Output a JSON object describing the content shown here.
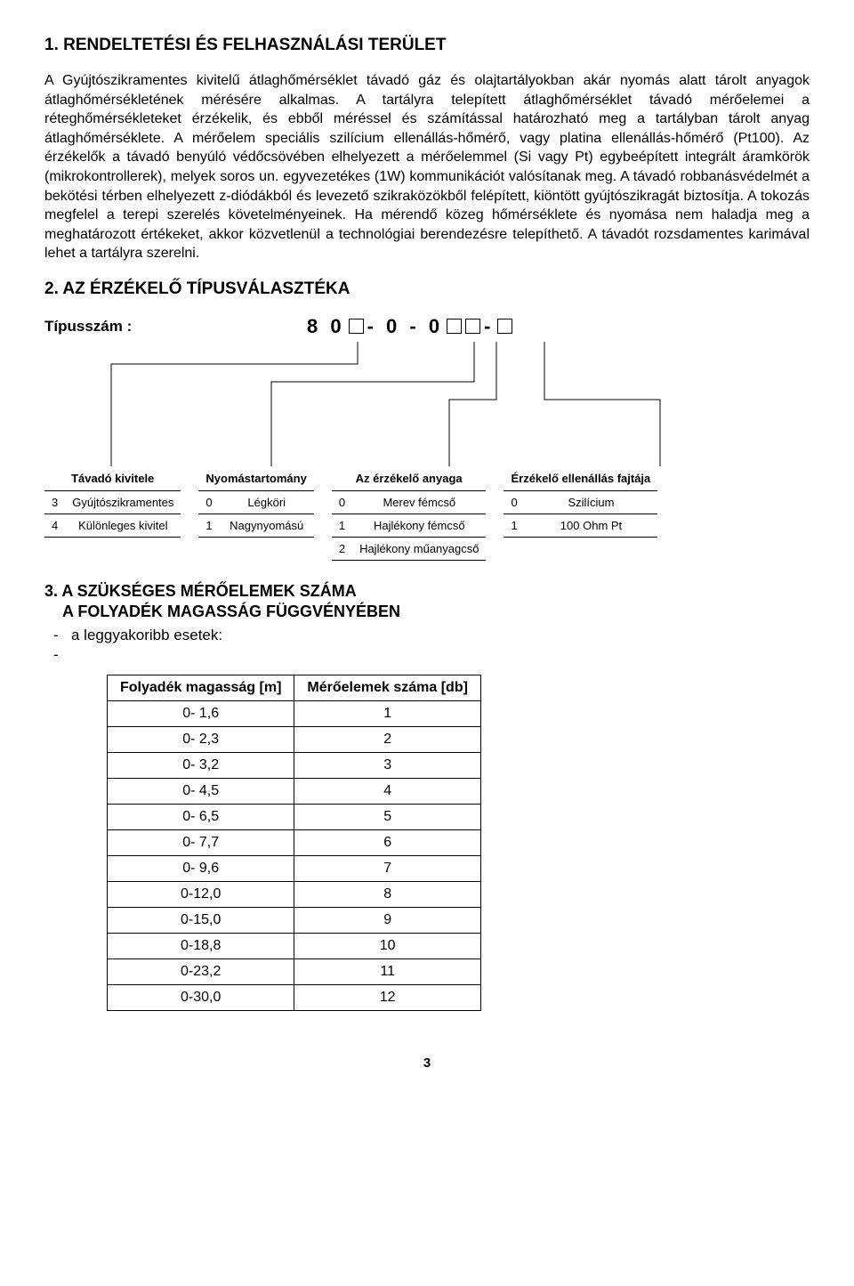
{
  "section1": {
    "heading": "1.  RENDELTETÉSI ÉS FELHASZNÁLÁSI TERÜLET",
    "paragraph": "A Gyújtószikramentes kivitelű átlaghőmérséklet távadó gáz és olajtartályokban akár nyomás alatt tárolt anyagok átlaghőmérsékletének mérésére alkalmas. A tartályra telepített átlaghőmérséklet távadó mérőelemei a réteghőmérsékleteket érzékelik, és ebből méréssel és számítással határozható meg a tartályban tárolt anyag átlaghőmérséklete. A mérőelem speciális szilícium ellenállás-hőmérő, vagy platina ellenállás-hőmérő (Pt100). Az érzékelők a távadó benyúló védőcsövében elhelyezett a mérőelemmel (Si vagy Pt) egybeépített integrált áramkörök (mikrokontrollerek), melyek soros un. egyvezetékes (1W) kommunikációt valósítanak meg. A távadó robbanásvédelmét a bekötési térben elhelyezett z-diódákból és levezető szikraközökből felépített, kiöntött gyújtószikragát biztosítja. A tokozás megfelel a terepi szerelés követelményeinek. Ha mérendő közeg hőmérséklete és nyomása nem haladja meg a meghatározott értékeket, akkor közvetlenül a technológiai berendezésre telepíthető. A távadót rozsdamentes karimával lehet a tartályra szerelni."
  },
  "section2": {
    "heading": "2.  AZ ÉRZÉKELŐ TÍPUSVÁLASZTÉKA",
    "type_label": "Típusszám :",
    "type_prefix": "8 0",
    "type_mid1": "- 0 - 0",
    "type_dash": "-"
  },
  "spec_tables": [
    {
      "header": "Távadó kivitele",
      "rows": [
        {
          "code": "3",
          "label": "Gyújtószikramentes"
        },
        {
          "code": "4",
          "label": "Különleges kivitel"
        }
      ]
    },
    {
      "header": "Nyomástartomány",
      "rows": [
        {
          "code": "0",
          "label": "Légköri"
        },
        {
          "code": "1",
          "label": "Nagynyomású"
        }
      ]
    },
    {
      "header": "Az érzékelő anyaga",
      "rows": [
        {
          "code": "0",
          "label": "Merev fémcső"
        },
        {
          "code": "1",
          "label": "Hajlékony fémcső"
        },
        {
          "code": "2",
          "label": "Hajlékony műanyagcső"
        }
      ]
    },
    {
      "header": "Érzékelő ellenállás fajtája",
      "rows": [
        {
          "code": "0",
          "label": "Szilícium"
        },
        {
          "code": "1",
          "label": "100 Ohm Pt"
        }
      ]
    }
  ],
  "section3": {
    "heading": "3. A SZÜKSÉGES  MÉRŐELEMEK SZÁMA",
    "subheading": "A FOLYADÉK MAGASSÁG FÜGGVÉNYÉBEN",
    "bullet": "a leggyakoribb esetek:"
  },
  "fluid_table": {
    "headers": [
      "Folyadék magasság [m]",
      "Mérőelemek száma [db]"
    ],
    "rows": [
      [
        "0- 1,6",
        "1"
      ],
      [
        "0- 2,3",
        "2"
      ],
      [
        "0- 3,2",
        "3"
      ],
      [
        "0- 4,5",
        "4"
      ],
      [
        "0- 6,5",
        "5"
      ],
      [
        "0- 7,7",
        "6"
      ],
      [
        "0- 9,6",
        "7"
      ],
      [
        "0-12,0",
        "8"
      ],
      [
        "0-15,0",
        "9"
      ],
      [
        "0-18,8",
        "10"
      ],
      [
        "0-23,2",
        "11"
      ],
      [
        "0-30,0",
        "12"
      ]
    ]
  },
  "page_number": "3",
  "diagram_style": {
    "line_color": "#000000",
    "line_width": 1
  }
}
